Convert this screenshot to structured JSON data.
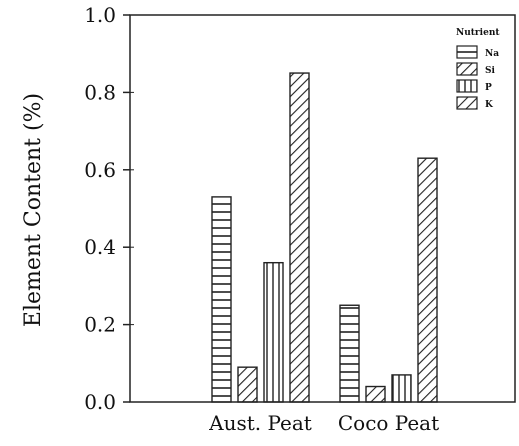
{
  "chart_data": {
    "type": "bar",
    "title": "",
    "xlabel": "",
    "ylabel": "Element Content (%)",
    "categories": [
      "Aust. Peat",
      "Coco Peat"
    ],
    "ylim": [
      0.0,
      1.0
    ],
    "yticks": [
      "0.0",
      "0.2",
      "0.4",
      "0.6",
      "0.8",
      "1.0"
    ],
    "grid": false,
    "legend": {
      "title": "Nutrient",
      "placement": "top-right"
    },
    "series": [
      {
        "name": "Na",
        "pattern": "horizontal-lines",
        "values": [
          0.53,
          0.25
        ]
      },
      {
        "name": "Si",
        "pattern": "diagonal-lines",
        "values": [
          0.09,
          0.04
        ]
      },
      {
        "name": "P",
        "pattern": "vertical-lines",
        "values": [
          0.36,
          0.07
        ]
      },
      {
        "name": "K",
        "pattern": "diagonal-lines",
        "values": [
          0.85,
          0.63
        ]
      }
    ]
  }
}
